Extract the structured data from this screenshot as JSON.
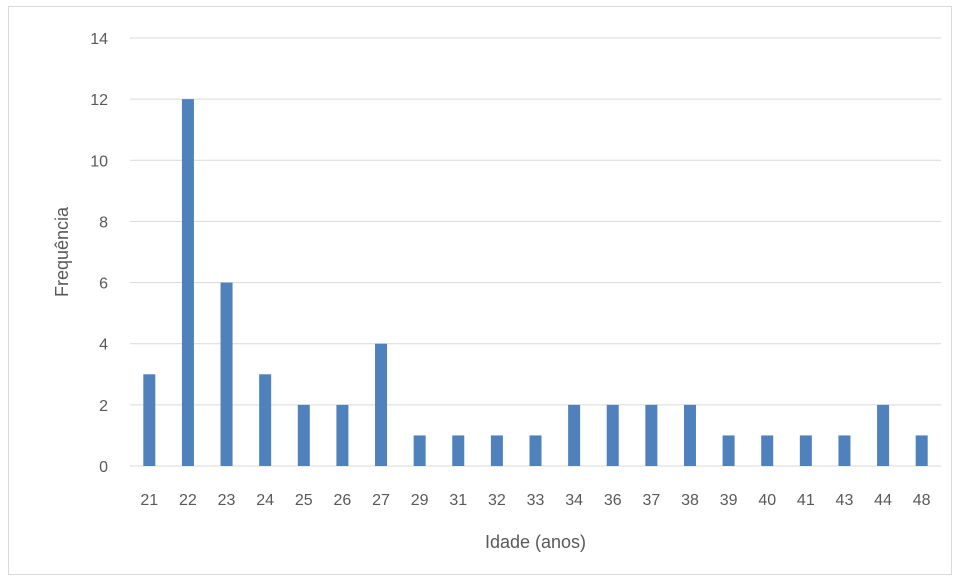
{
  "chart_data": {
    "type": "bar",
    "title": "",
    "xlabel": "Idade (anos)",
    "ylabel": "Frequência",
    "categories": [
      "21",
      "22",
      "23",
      "24",
      "25",
      "26",
      "27",
      "29",
      "31",
      "32",
      "33",
      "34",
      "36",
      "37",
      "38",
      "39",
      "40",
      "41",
      "43",
      "44",
      "48"
    ],
    "values": [
      3,
      12,
      6,
      3,
      2,
      2,
      4,
      1,
      1,
      1,
      1,
      2,
      2,
      2,
      2,
      1,
      1,
      1,
      1,
      2,
      1
    ],
    "ylim": [
      0,
      14
    ],
    "yticks": [
      0,
      2,
      4,
      6,
      8,
      10,
      12,
      14
    ],
    "grid": true,
    "legend": "none",
    "bar_color": "#4f81bd",
    "grid_color": "#d9d9d9"
  }
}
